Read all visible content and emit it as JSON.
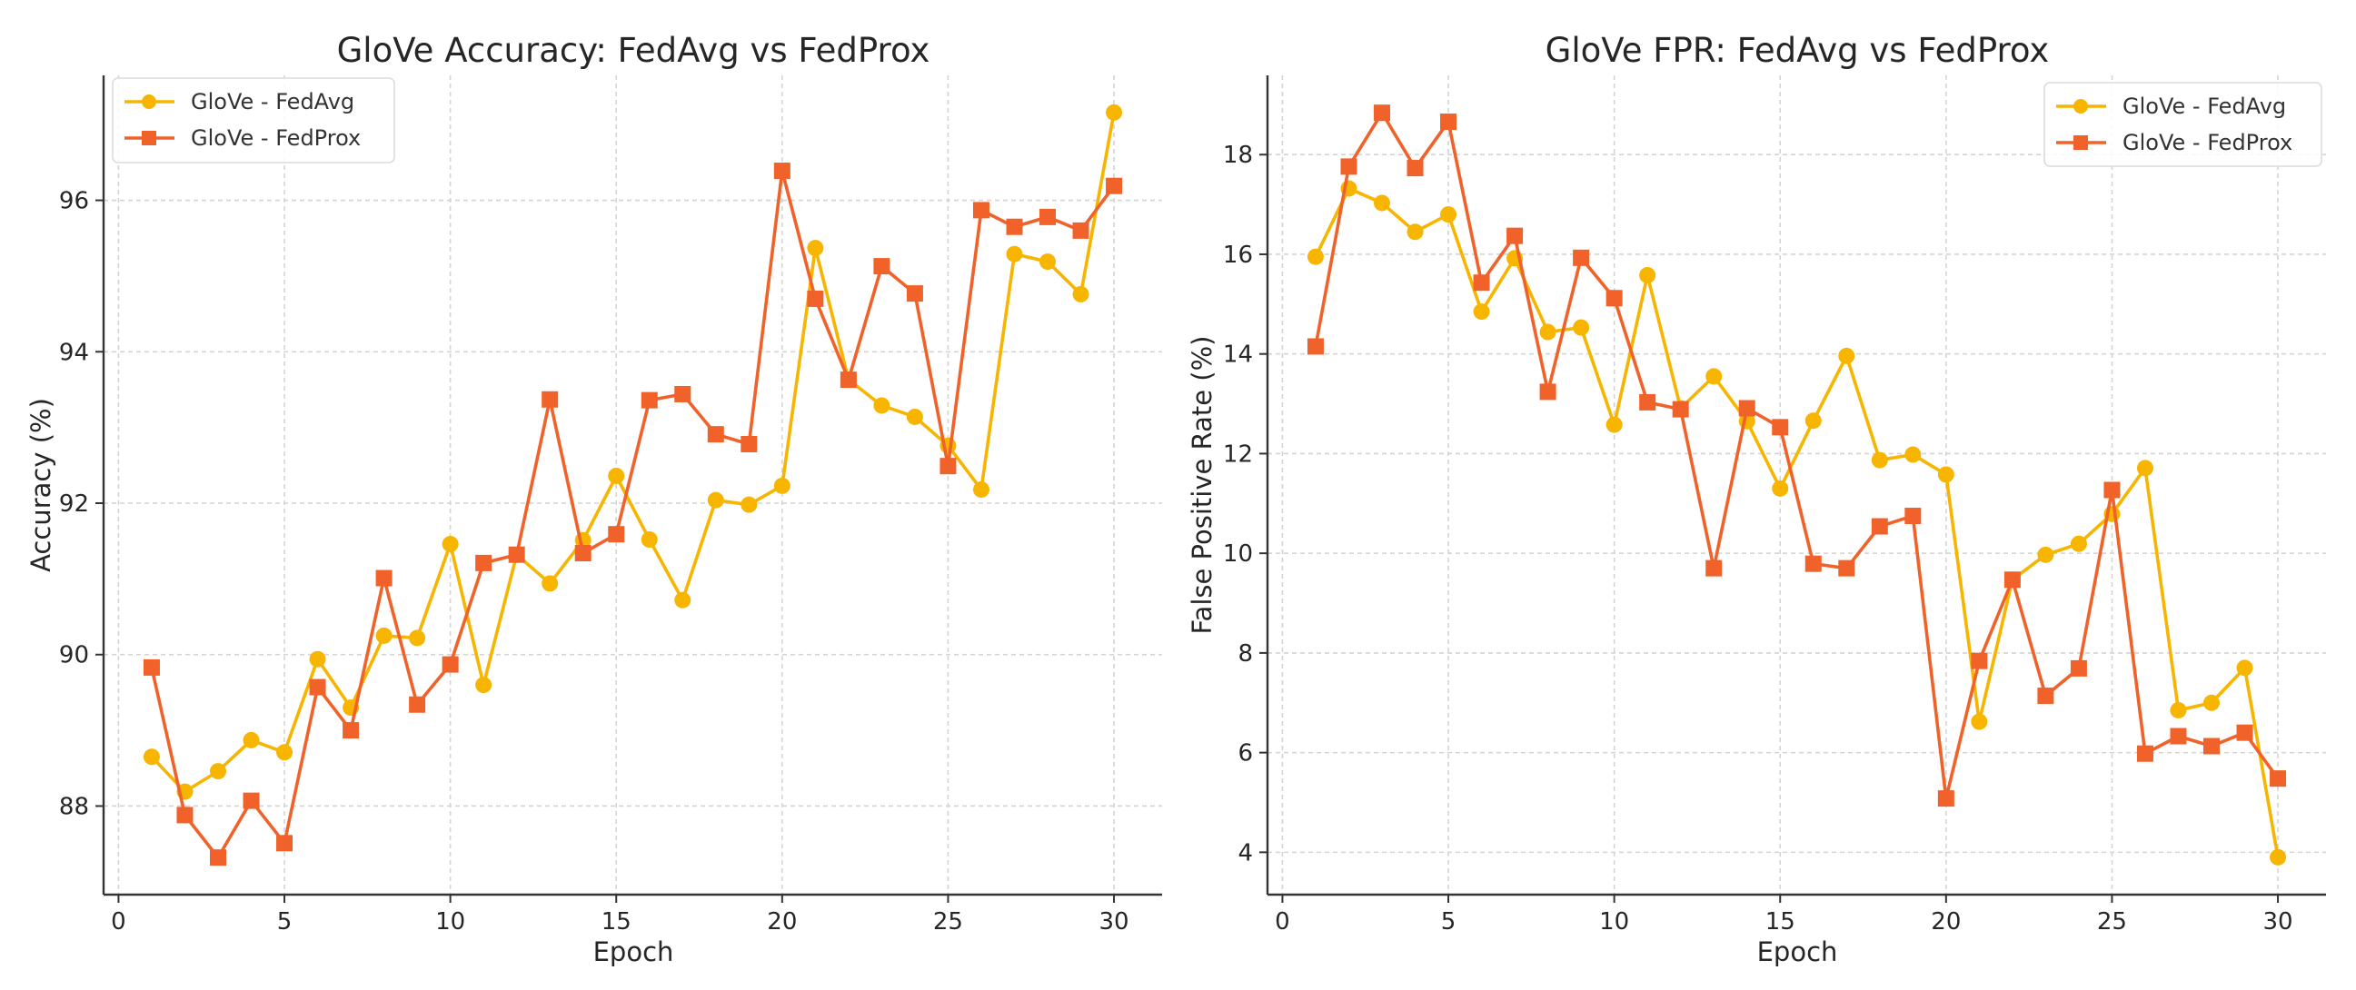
{
  "chart_data": [
    {
      "type": "line",
      "title": "GloVe Accuracy: FedAvg vs FedProx",
      "xlabel": "Epoch",
      "ylabel": "Accuracy (%)",
      "xlim": [
        -0.45,
        31.45
      ],
      "ylim": [
        86.83,
        97.65
      ],
      "xticks": [
        0,
        5,
        10,
        15,
        20,
        25,
        30
      ],
      "yticks": [
        88,
        90,
        92,
        94,
        96
      ],
      "grid": true,
      "legend_position": "top-left",
      "x": [
        1,
        2,
        3,
        4,
        5,
        6,
        7,
        8,
        9,
        10,
        11,
        12,
        13,
        14,
        15,
        16,
        17,
        18,
        19,
        20,
        21,
        22,
        23,
        24,
        25,
        26,
        27,
        28,
        29,
        30
      ],
      "series": [
        {
          "name": "GloVe - FedAvg",
          "color": "#F7B500",
          "marker": "circle",
          "values": [
            88.65,
            88.19,
            88.46,
            88.87,
            88.71,
            89.94,
            89.3,
            90.25,
            90.22,
            91.46,
            89.6,
            91.32,
            90.94,
            91.51,
            92.36,
            91.52,
            90.72,
            92.04,
            91.98,
            92.23,
            95.37,
            93.63,
            93.29,
            93.14,
            92.76,
            92.18,
            95.29,
            95.19,
            94.76,
            97.16
          ]
        },
        {
          "name": "GloVe - FedProx",
          "color": "#F0622A",
          "marker": "square",
          "values": [
            89.83,
            87.88,
            87.32,
            88.07,
            87.51,
            89.57,
            89.0,
            91.01,
            89.34,
            89.87,
            91.21,
            91.32,
            93.37,
            91.34,
            91.59,
            93.36,
            93.44,
            92.91,
            92.78,
            96.39,
            94.7,
            93.63,
            95.13,
            94.77,
            92.49,
            95.87,
            95.65,
            95.78,
            95.6,
            96.19
          ]
        }
      ]
    },
    {
      "type": "line",
      "title": "GloVe FPR: FedAvg vs FedProx",
      "xlabel": "Epoch",
      "ylabel": "False Positive Rate (%)",
      "xlim": [
        -0.45,
        31.45
      ],
      "ylim": [
        3.15,
        19.59
      ],
      "xticks": [
        0,
        5,
        10,
        15,
        20,
        25,
        30
      ],
      "yticks": [
        4,
        6,
        8,
        10,
        12,
        14,
        16,
        18
      ],
      "grid": true,
      "legend_position": "top-right",
      "x": [
        1,
        2,
        3,
        4,
        5,
        6,
        7,
        8,
        9,
        10,
        11,
        12,
        13,
        14,
        15,
        16,
        17,
        18,
        19,
        20,
        21,
        22,
        23,
        24,
        25,
        26,
        27,
        28,
        29,
        30
      ],
      "series": [
        {
          "name": "GloVe - FedAvg",
          "color": "#F7B500",
          "marker": "circle",
          "values": [
            15.95,
            17.32,
            17.03,
            16.45,
            16.8,
            14.85,
            15.92,
            14.44,
            14.53,
            12.58,
            15.58,
            12.91,
            13.55,
            12.65,
            11.3,
            12.66,
            13.96,
            11.87,
            11.98,
            11.58,
            6.62,
            9.47,
            9.97,
            10.19,
            10.79,
            11.71,
            6.85,
            7.0,
            7.7,
            3.9
          ]
        },
        {
          "name": "GloVe - FedProx",
          "color": "#F0622A",
          "marker": "square",
          "values": [
            14.15,
            17.76,
            18.84,
            17.73,
            18.66,
            15.43,
            16.37,
            13.24,
            15.93,
            15.12,
            13.03,
            12.89,
            9.7,
            12.91,
            12.53,
            9.79,
            9.7,
            10.54,
            10.75,
            5.08,
            7.84,
            9.47,
            7.14,
            7.69,
            11.27,
            5.98,
            6.33,
            6.13,
            6.4,
            5.48
          ]
        }
      ]
    }
  ]
}
